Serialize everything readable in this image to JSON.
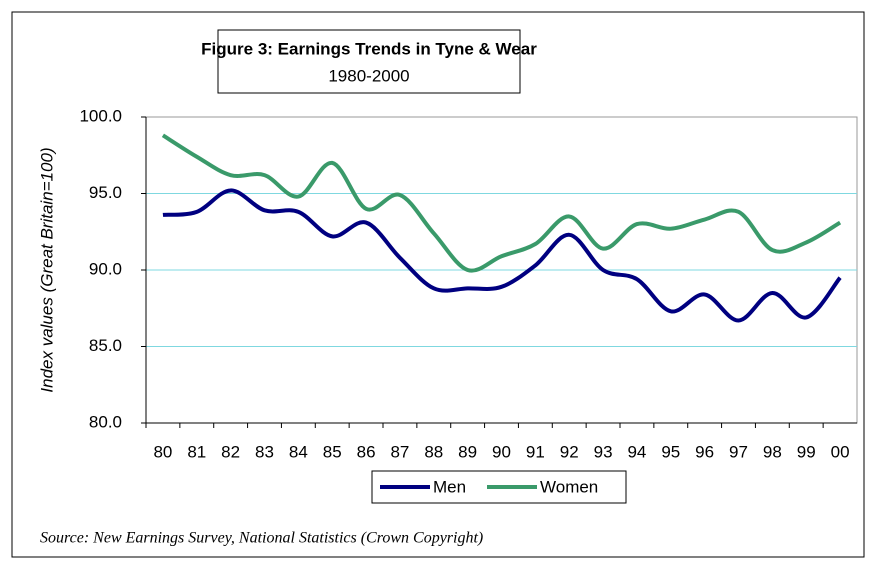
{
  "chart_data": {
    "type": "line",
    "title": "Figure 3: Earnings Trends in Tyne & Wear",
    "subtitle": "1980-2000",
    "y_label": "Index values (Great Britain=100)",
    "source": "Source: New Earnings Survey, National Statistics (Crown Copyright)",
    "categories": [
      "80",
      "81",
      "82",
      "83",
      "84",
      "85",
      "86",
      "87",
      "88",
      "89",
      "90",
      "91",
      "92",
      "93",
      "94",
      "95",
      "96",
      "97",
      "98",
      "99",
      "00"
    ],
    "series": [
      {
        "name": "Men",
        "color": "#000080",
        "values": [
          93.6,
          93.8,
          95.2,
          93.9,
          93.8,
          92.2,
          93.1,
          90.8,
          88.8,
          88.8,
          88.9,
          90.3,
          92.3,
          90.0,
          89.4,
          87.3,
          88.4,
          86.7,
          88.5,
          86.9,
          89.5
        ]
      },
      {
        "name": "Women",
        "color": "#3a9a6a",
        "values": [
          98.8,
          97.4,
          96.2,
          96.2,
          94.8,
          97.0,
          94.0,
          94.9,
          92.4,
          90.0,
          90.9,
          91.7,
          93.5,
          91.4,
          93.0,
          92.7,
          93.3,
          93.8,
          91.3,
          91.8,
          93.1
        ]
      }
    ],
    "ylim": [
      80,
      100
    ],
    "yticks": [
      {
        "value": 80,
        "label": "80.0"
      },
      {
        "value": 85,
        "label": "85.0"
      },
      {
        "value": 90,
        "label": "90.0"
      },
      {
        "value": 95,
        "label": "95.0"
      },
      {
        "value": 100,
        "label": "100.0"
      }
    ],
    "grid": true,
    "grid_color": "#7fd8e0",
    "legend": "bottom"
  }
}
